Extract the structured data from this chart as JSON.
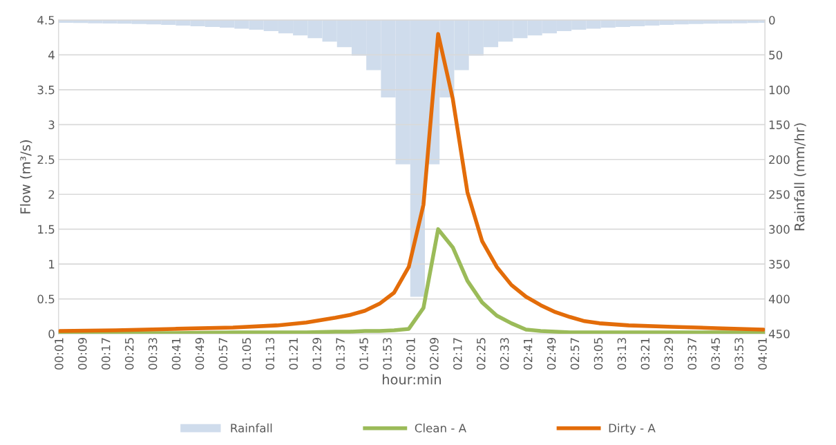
{
  "chart_data": {
    "type": "line",
    "xlabel": "hour:min",
    "ylabel": "Flow (m³/s)",
    "y2label": "Rainfall (mm/hr)",
    "xlim": [
      0.0083,
      4.025
    ],
    "xticks": [
      {
        "value": 0.0167,
        "label": "00:01"
      },
      {
        "value": 0.15,
        "label": "00:09"
      },
      {
        "value": 0.2833,
        "label": "00:17"
      },
      {
        "value": 0.4167,
        "label": "00:25"
      },
      {
        "value": 0.55,
        "label": "00:33"
      },
      {
        "value": 0.6833,
        "label": "00:41"
      },
      {
        "value": 0.8167,
        "label": "00:49"
      },
      {
        "value": 0.95,
        "label": "00:57"
      },
      {
        "value": 1.0833,
        "label": "01:05"
      },
      {
        "value": 1.2167,
        "label": "01:13"
      },
      {
        "value": 1.35,
        "label": "01:21"
      },
      {
        "value": 1.4833,
        "label": "01:29"
      },
      {
        "value": 1.6167,
        "label": "01:37"
      },
      {
        "value": 1.75,
        "label": "01:45"
      },
      {
        "value": 1.8833,
        "label": "01:53"
      },
      {
        "value": 2.0167,
        "label": "02:01"
      },
      {
        "value": 2.15,
        "label": "02:09"
      },
      {
        "value": 2.2833,
        "label": "02:17"
      },
      {
        "value": 2.4167,
        "label": "02:25"
      },
      {
        "value": 2.55,
        "label": "02:33"
      },
      {
        "value": 2.6833,
        "label": "02:41"
      },
      {
        "value": 2.8167,
        "label": "02:49"
      },
      {
        "value": 2.95,
        "label": "02:57"
      },
      {
        "value": 3.0833,
        "label": "03:05"
      },
      {
        "value": 3.2167,
        "label": "03:13"
      },
      {
        "value": 3.35,
        "label": "03:21"
      },
      {
        "value": 3.4833,
        "label": "03:29"
      },
      {
        "value": 3.6167,
        "label": "03:37"
      },
      {
        "value": 3.75,
        "label": "03:45"
      },
      {
        "value": 3.8833,
        "label": "03:53"
      },
      {
        "value": 4.0167,
        "label": "04:01"
      }
    ],
    "ylim": [
      0,
      4.5
    ],
    "yticks": [
      0,
      0.5,
      1,
      1.5,
      2,
      2.5,
      3,
      3.5,
      4,
      4.5
    ],
    "y2lim": [
      450,
      0
    ],
    "y2ticks": [
      0,
      50,
      100,
      150,
      200,
      250,
      300,
      350,
      400,
      450
    ],
    "grid": "y",
    "legend": "bottom",
    "series": [
      {
        "name": "Rainfall",
        "type": "bar",
        "axis": "y2",
        "color": "#cfdcec",
        "x": [
          0.05,
          0.1333,
          0.2167,
          0.3,
          0.3833,
          0.4667,
          0.55,
          0.6333,
          0.7167,
          0.8,
          0.8833,
          0.9667,
          1.05,
          1.1333,
          1.2167,
          1.3,
          1.3833,
          1.4667,
          1.55,
          1.6333,
          1.7167,
          1.8,
          1.8833,
          1.9667,
          2.05,
          2.1333,
          2.2167,
          2.3,
          2.3833,
          2.4667,
          2.55,
          2.6333,
          2.7167,
          2.8,
          2.8833,
          2.9667,
          3.05,
          3.1333,
          3.2167,
          3.3,
          3.3833,
          3.4667,
          3.55,
          3.6333,
          3.7167,
          3.8,
          3.8833,
          3.9667,
          4.0167
        ],
        "values": [
          4,
          4.3,
          4.7,
          5,
          5.3,
          5.7,
          6.3,
          7,
          8,
          9,
          10,
          11,
          12.5,
          14,
          16,
          19,
          22,
          26,
          31,
          39,
          51,
          72,
          111,
          207,
          397,
          207,
          111,
          72,
          51,
          39,
          31,
          26,
          22,
          19,
          16,
          14,
          12.5,
          11,
          10,
          9,
          8,
          7,
          6.3,
          5.7,
          5.3,
          5,
          4.7,
          4.3,
          4
        ]
      },
      {
        "name": "Clean - A",
        "color": "#9bbb59",
        "x": [
          0.0167,
          0.3333,
          0.6667,
          1.0,
          1.25,
          1.4167,
          1.5833,
          1.6667,
          1.75,
          1.8333,
          1.9167,
          2.0,
          2.0833,
          2.1667,
          2.25,
          2.3333,
          2.4167,
          2.5,
          2.5833,
          2.6667,
          2.75,
          2.8333,
          2.9167,
          3.0,
          3.0833,
          3.25,
          3.5,
          3.75,
          4.0167
        ],
        "values": [
          0.01,
          0.01,
          0.01,
          0.02,
          0.02,
          0.02,
          0.03,
          0.03,
          0.04,
          0.04,
          0.05,
          0.07,
          0.37,
          1.5,
          1.24,
          0.76,
          0.45,
          0.26,
          0.15,
          0.06,
          0.04,
          0.03,
          0.02,
          0.02,
          0.02,
          0.02,
          0.02,
          0.02,
          0.02
        ]
      },
      {
        "name": "Dirty - A",
        "color": "#e36c09",
        "x": [
          0.0167,
          0.3333,
          0.6667,
          1.0,
          1.25,
          1.4167,
          1.5833,
          1.6667,
          1.75,
          1.8333,
          1.9167,
          2.0,
          2.0833,
          2.1667,
          2.25,
          2.3333,
          2.4167,
          2.5,
          2.5833,
          2.6667,
          2.75,
          2.8333,
          2.9167,
          3.0,
          3.0833,
          3.25,
          3.5,
          3.75,
          4.0167
        ],
        "values": [
          0.04,
          0.05,
          0.07,
          0.09,
          0.12,
          0.16,
          0.23,
          0.27,
          0.33,
          0.43,
          0.59,
          0.96,
          1.85,
          4.3,
          3.37,
          2.03,
          1.33,
          0.96,
          0.7,
          0.53,
          0.41,
          0.31,
          0.24,
          0.18,
          0.15,
          0.12,
          0.1,
          0.08,
          0.06
        ]
      }
    ]
  }
}
